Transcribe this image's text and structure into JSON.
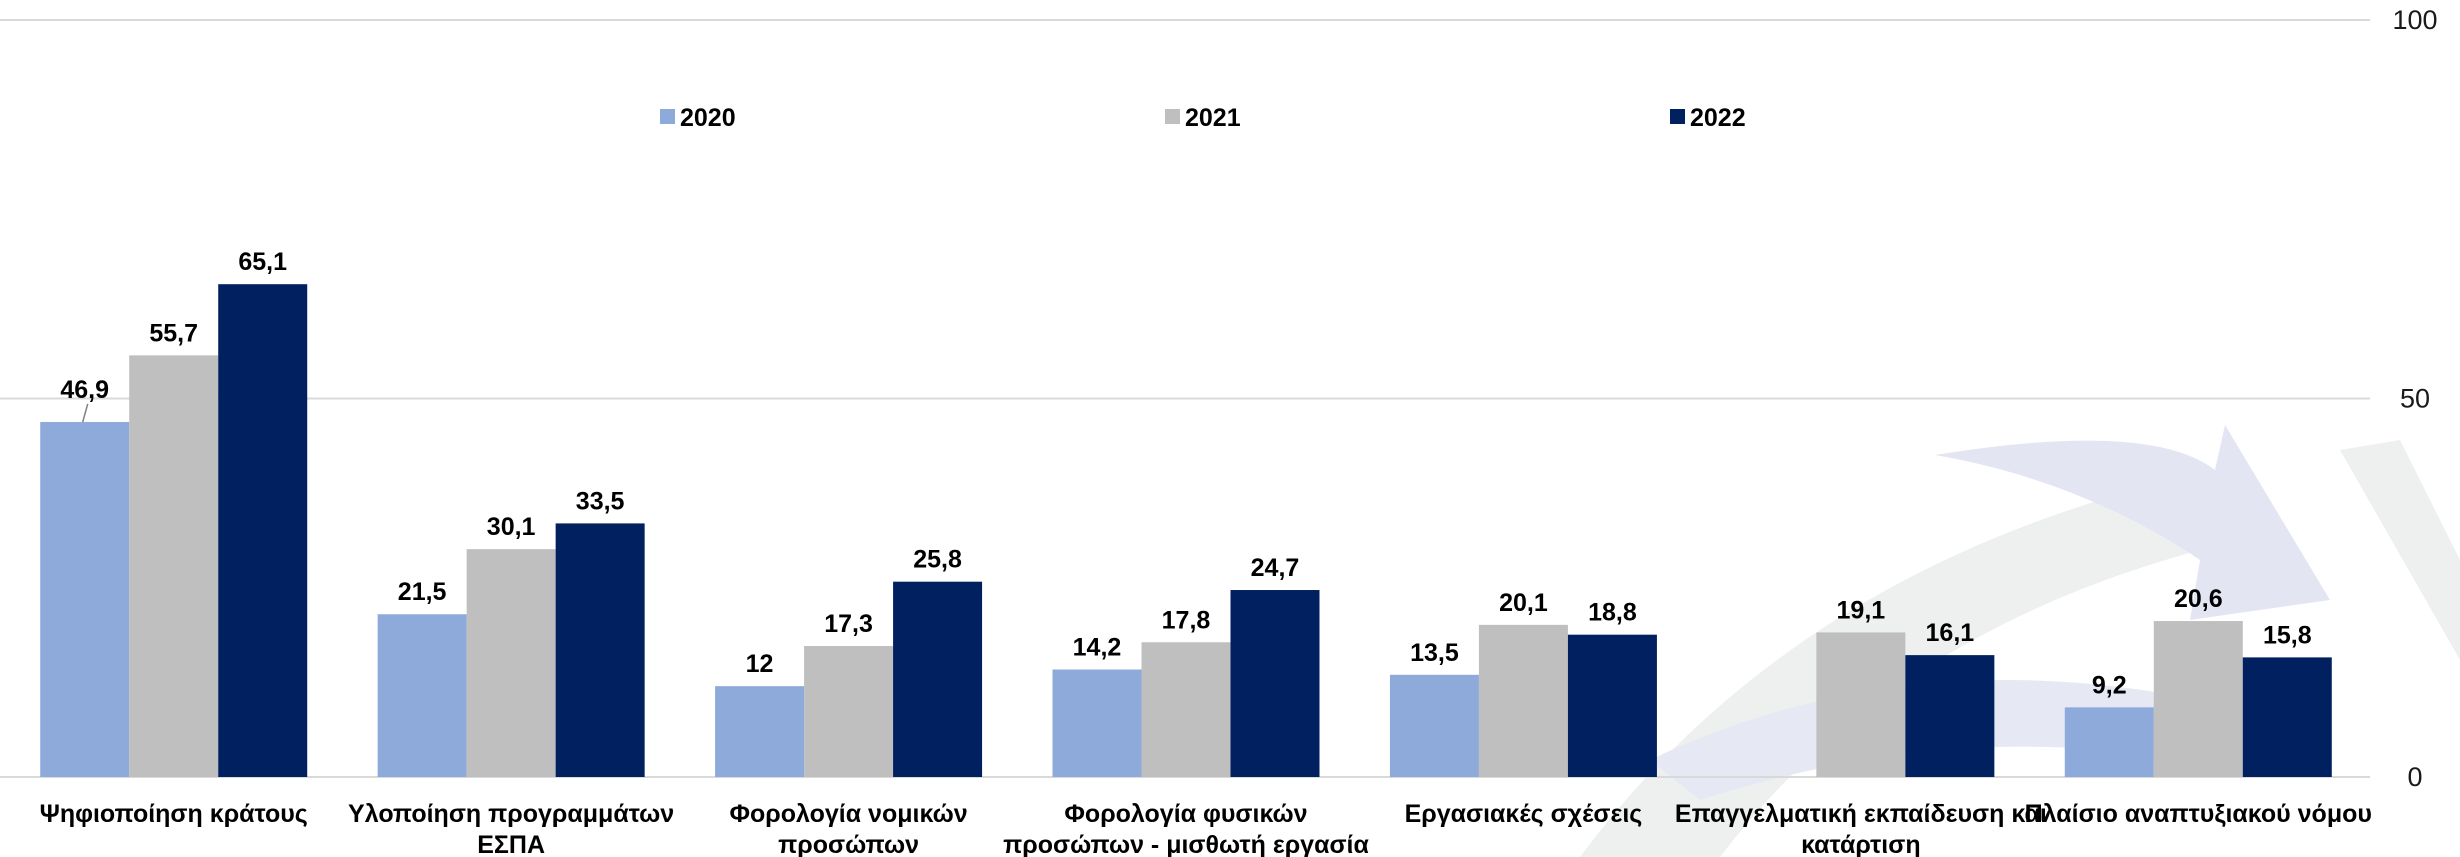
{
  "chart_data": {
    "type": "bar",
    "title": "",
    "xlabel": "",
    "ylabel": "",
    "ylim": [
      0,
      100
    ],
    "yticks": [
      {
        "value": 0,
        "label": "0"
      },
      {
        "value": 50,
        "label": "50"
      },
      {
        "value": 100,
        "label": "100"
      }
    ],
    "yaxis_position": "right",
    "grid": true,
    "legend": "top-center",
    "categories": [
      [
        "Ψηφιοποίηση κράτους"
      ],
      [
        "Υλοποίηση προγραμμάτων",
        "ΕΣΠΑ"
      ],
      [
        "Φορολογία νομικών",
        "προσώπων"
      ],
      [
        "Φορολογία φυσικών",
        "προσώπων - μισθωτή εργασία"
      ],
      [
        "Εργασιακές σχέσεις"
      ],
      [
        "Επαγγελματική εκπαίδευση και",
        "κατάρτιση"
      ],
      [
        "Πλαίσιο αναπτυξιακού νόμου"
      ]
    ],
    "series": [
      {
        "name": "2020",
        "color": "#8eaadb",
        "values": [
          46.9,
          21.5,
          12,
          14.2,
          13.5,
          null,
          9.2
        ],
        "labels": [
          "46,9",
          "21,5",
          "12",
          "14,2",
          "13,5",
          "",
          "9,2"
        ]
      },
      {
        "name": "2021",
        "color": "#bfbfbf",
        "values": [
          55.7,
          30.1,
          17.3,
          17.8,
          20.1,
          19.1,
          20.6
        ],
        "labels": [
          "55,7",
          "30,1",
          "17,3",
          "17,8",
          "20,1",
          "19,1",
          "20,6"
        ]
      },
      {
        "name": "2022",
        "color": "#002060",
        "values": [
          65.1,
          33.5,
          25.8,
          24.7,
          18.8,
          16.1,
          15.8
        ],
        "labels": [
          "65,1",
          "33,5",
          "25,8",
          "24,7",
          "18,8",
          "16,1",
          "15,8"
        ]
      }
    ]
  }
}
